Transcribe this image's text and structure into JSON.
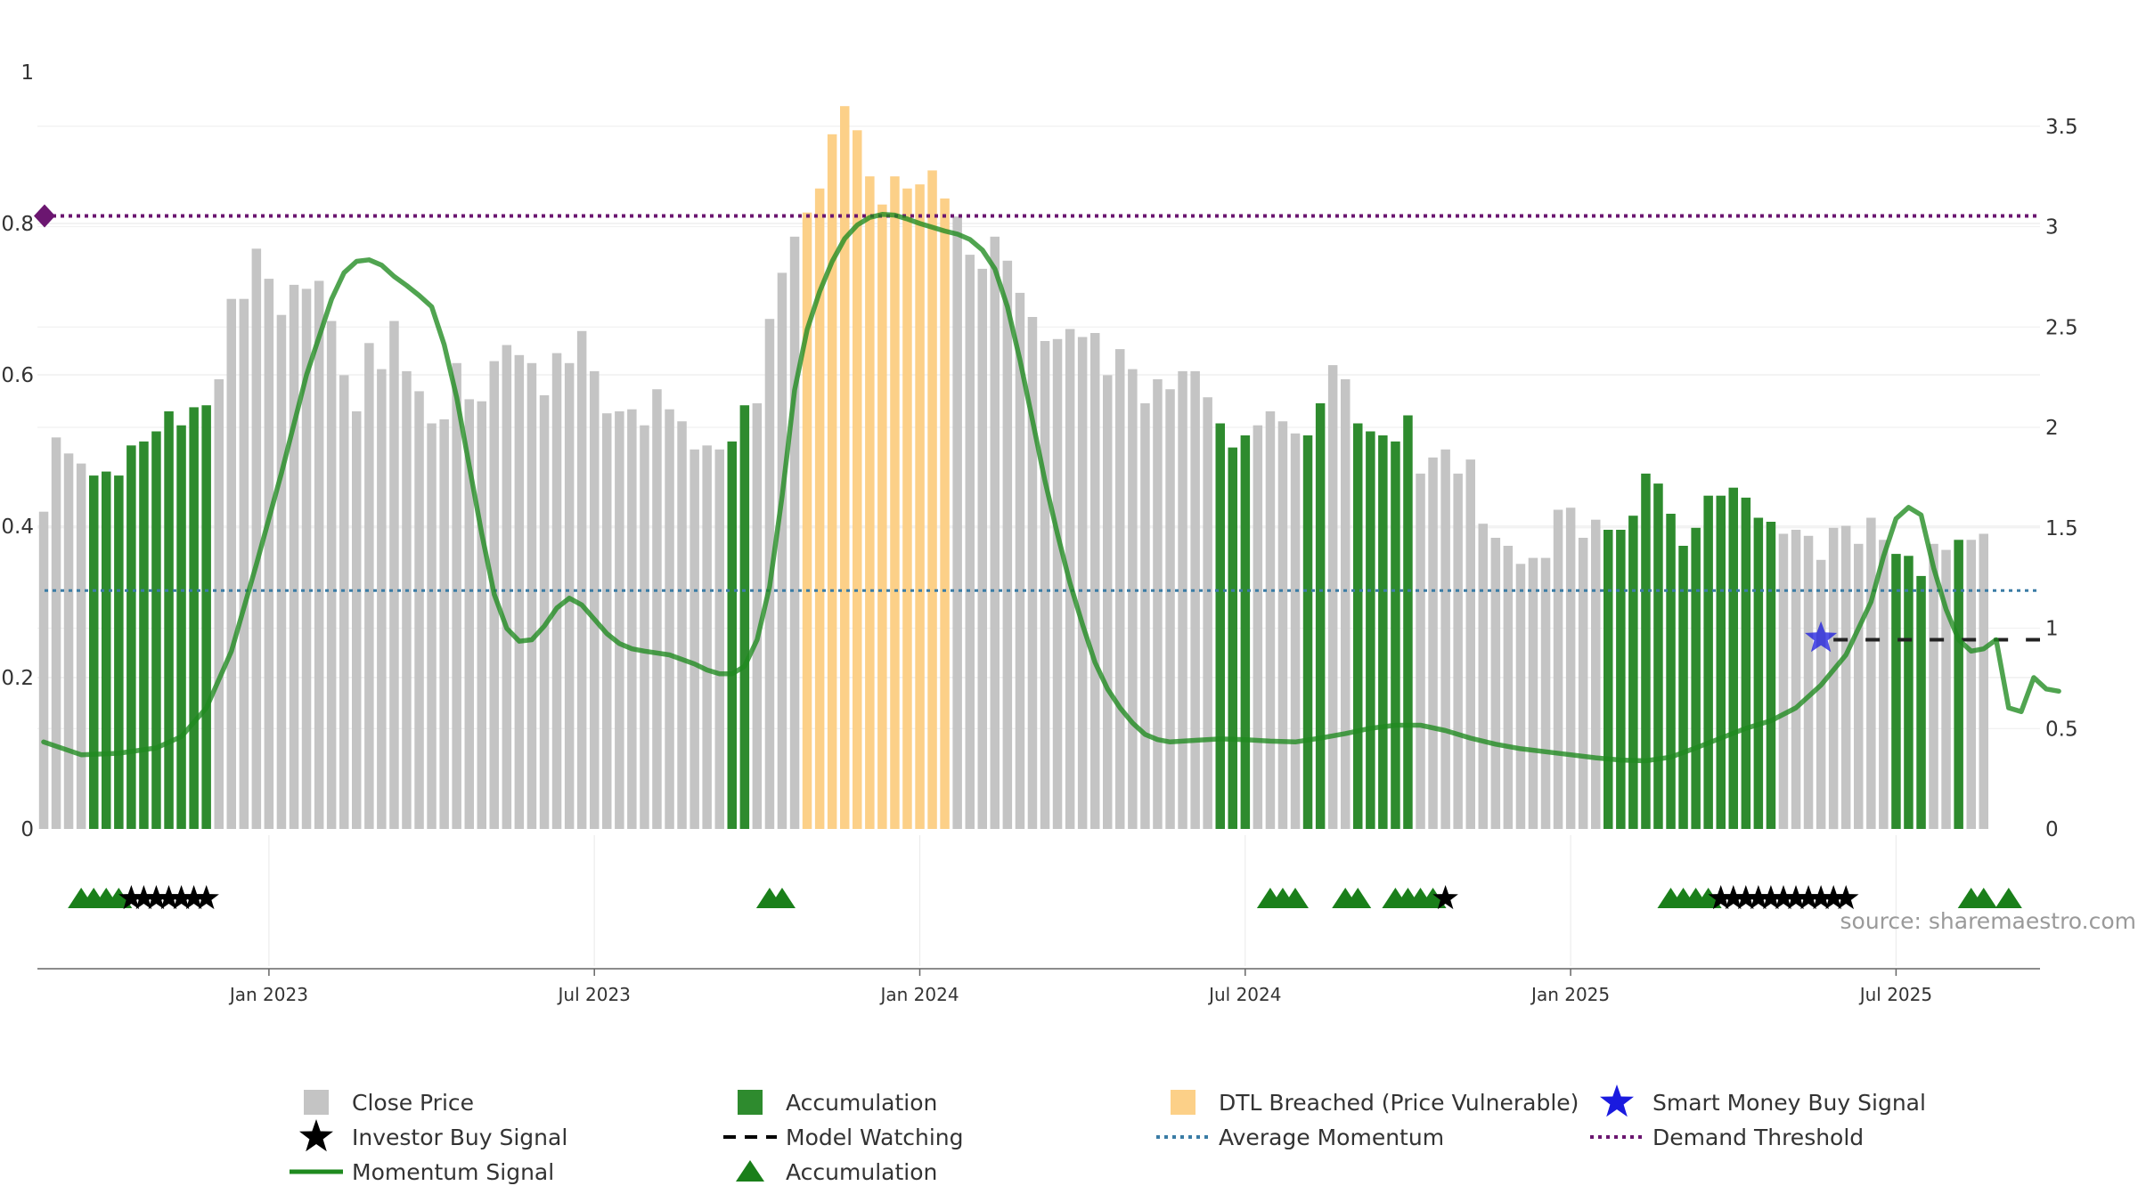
{
  "source_text": "source: sharemaestro.com",
  "colors": {
    "close": "#c4c4c4",
    "accumulation": "#2e8b2e",
    "dtl": "#fcd088",
    "momentum": "#1f8a1f",
    "average": "#3a7ca5",
    "threshold": "#6b1670",
    "smart_money": "#1a1adf",
    "triangle": "#1a7f1a",
    "star": "#000000"
  },
  "chart_data": {
    "type": "bar",
    "left_axis": {
      "range": [
        0,
        1
      ],
      "ticks": [
        "0",
        "0.2",
        "0.4",
        "0.6",
        "0.8",
        "1"
      ]
    },
    "right_axis": {
      "range": [
        0,
        3.75
      ],
      "ticks": [
        "0",
        "0.5",
        "1",
        "1.5",
        "2",
        "2.5",
        "3",
        "3.5"
      ]
    },
    "x_ticks": [
      "Jan 2023",
      "Jul 2023",
      "Jan 2024",
      "Jul 2024",
      "Jan 2025",
      "Jul 2025"
    ],
    "x_tick_weeks": [
      18,
      44,
      70,
      96,
      122,
      148
    ],
    "bars": [
      [
        1.58,
        "close"
      ],
      [
        1.95,
        "close"
      ],
      [
        1.87,
        "close"
      ],
      [
        1.82,
        "close"
      ],
      [
        1.76,
        "acc"
      ],
      [
        1.78,
        "acc"
      ],
      [
        1.76,
        "acc"
      ],
      [
        1.91,
        "acc"
      ],
      [
        1.93,
        "acc"
      ],
      [
        1.98,
        "acc"
      ],
      [
        2.08,
        "acc"
      ],
      [
        2.01,
        "acc"
      ],
      [
        2.1,
        "acc"
      ],
      [
        2.11,
        "acc"
      ],
      [
        2.24,
        "close"
      ],
      [
        2.64,
        "close"
      ],
      [
        2.64,
        "close"
      ],
      [
        2.89,
        "close"
      ],
      [
        2.74,
        "close"
      ],
      [
        2.56,
        "close"
      ],
      [
        2.71,
        "close"
      ],
      [
        2.69,
        "close"
      ],
      [
        2.73,
        "close"
      ],
      [
        2.53,
        "close"
      ],
      [
        2.26,
        "close"
      ],
      [
        2.08,
        "close"
      ],
      [
        2.42,
        "close"
      ],
      [
        2.29,
        "close"
      ],
      [
        2.53,
        "close"
      ],
      [
        2.28,
        "close"
      ],
      [
        2.18,
        "close"
      ],
      [
        2.02,
        "close"
      ],
      [
        2.04,
        "close"
      ],
      [
        2.32,
        "close"
      ],
      [
        2.14,
        "close"
      ],
      [
        2.13,
        "close"
      ],
      [
        2.33,
        "close"
      ],
      [
        2.41,
        "close"
      ],
      [
        2.36,
        "close"
      ],
      [
        2.32,
        "close"
      ],
      [
        2.16,
        "close"
      ],
      [
        2.37,
        "close"
      ],
      [
        2.32,
        "close"
      ],
      [
        2.48,
        "close"
      ],
      [
        2.28,
        "close"
      ],
      [
        2.07,
        "close"
      ],
      [
        2.08,
        "close"
      ],
      [
        2.09,
        "close"
      ],
      [
        2.01,
        "close"
      ],
      [
        2.19,
        "close"
      ],
      [
        2.09,
        "close"
      ],
      [
        2.03,
        "close"
      ],
      [
        1.89,
        "close"
      ],
      [
        1.91,
        "close"
      ],
      [
        1.89,
        "close"
      ],
      [
        1.93,
        "acc"
      ],
      [
        2.11,
        "acc"
      ],
      [
        2.12,
        "close"
      ],
      [
        2.54,
        "close"
      ],
      [
        2.77,
        "close"
      ],
      [
        2.95,
        "close"
      ],
      [
        3.07,
        "dtl"
      ],
      [
        3.19,
        "dtl"
      ],
      [
        3.46,
        "dtl"
      ],
      [
        3.6,
        "dtl"
      ],
      [
        3.48,
        "dtl"
      ],
      [
        3.25,
        "dtl"
      ],
      [
        3.11,
        "dtl"
      ],
      [
        3.25,
        "dtl"
      ],
      [
        3.19,
        "dtl"
      ],
      [
        3.21,
        "dtl"
      ],
      [
        3.28,
        "dtl"
      ],
      [
        3.14,
        "dtl"
      ],
      [
        3.05,
        "close"
      ],
      [
        2.86,
        "close"
      ],
      [
        2.79,
        "close"
      ],
      [
        2.95,
        "close"
      ],
      [
        2.83,
        "close"
      ],
      [
        2.67,
        "close"
      ],
      [
        2.55,
        "close"
      ],
      [
        2.43,
        "close"
      ],
      [
        2.44,
        "close"
      ],
      [
        2.49,
        "close"
      ],
      [
        2.45,
        "close"
      ],
      [
        2.47,
        "close"
      ],
      [
        2.26,
        "close"
      ],
      [
        2.39,
        "close"
      ],
      [
        2.29,
        "close"
      ],
      [
        2.12,
        "close"
      ],
      [
        2.24,
        "close"
      ],
      [
        2.19,
        "close"
      ],
      [
        2.28,
        "close"
      ],
      [
        2.28,
        "close"
      ],
      [
        2.15,
        "close"
      ],
      [
        2.02,
        "acc"
      ],
      [
        1.9,
        "acc"
      ],
      [
        1.96,
        "acc"
      ],
      [
        2.01,
        "close"
      ],
      [
        2.08,
        "close"
      ],
      [
        2.03,
        "close"
      ],
      [
        1.97,
        "close"
      ],
      [
        1.96,
        "acc"
      ],
      [
        2.12,
        "acc"
      ],
      [
        2.31,
        "close"
      ],
      [
        2.24,
        "close"
      ],
      [
        2.02,
        "acc"
      ],
      [
        1.98,
        "acc"
      ],
      [
        1.96,
        "acc"
      ],
      [
        1.93,
        "acc"
      ],
      [
        2.06,
        "acc"
      ],
      [
        1.77,
        "close"
      ],
      [
        1.85,
        "close"
      ],
      [
        1.89,
        "close"
      ],
      [
        1.77,
        "close"
      ],
      [
        1.84,
        "close"
      ],
      [
        1.52,
        "close"
      ],
      [
        1.45,
        "close"
      ],
      [
        1.41,
        "close"
      ],
      [
        1.32,
        "close"
      ],
      [
        1.35,
        "close"
      ],
      [
        1.35,
        "close"
      ],
      [
        1.59,
        "close"
      ],
      [
        1.6,
        "close"
      ],
      [
        1.45,
        "close"
      ],
      [
        1.54,
        "close"
      ],
      [
        1.49,
        "acc"
      ],
      [
        1.49,
        "acc"
      ],
      [
        1.56,
        "acc"
      ],
      [
        1.77,
        "acc"
      ],
      [
        1.72,
        "acc"
      ],
      [
        1.57,
        "acc"
      ],
      [
        1.41,
        "acc"
      ],
      [
        1.5,
        "acc"
      ],
      [
        1.66,
        "acc"
      ],
      [
        1.66,
        "acc"
      ],
      [
        1.7,
        "acc"
      ],
      [
        1.65,
        "acc"
      ],
      [
        1.55,
        "acc"
      ],
      [
        1.53,
        "acc"
      ],
      [
        1.47,
        "close"
      ],
      [
        1.49,
        "close"
      ],
      [
        1.46,
        "close"
      ],
      [
        1.34,
        "close"
      ],
      [
        1.5,
        "close"
      ],
      [
        1.51,
        "close"
      ],
      [
        1.42,
        "close"
      ],
      [
        1.55,
        "close"
      ],
      [
        1.44,
        "close"
      ],
      [
        1.37,
        "acc"
      ],
      [
        1.36,
        "acc"
      ],
      [
        1.26,
        "acc"
      ],
      [
        1.42,
        "close"
      ],
      [
        1.39,
        "close"
      ],
      [
        1.44,
        "acc"
      ],
      [
        1.44,
        "close"
      ],
      [
        1.47,
        "close"
      ]
    ],
    "momentum_signal": [
      [
        0,
        0.115
      ],
      [
        3,
        0.098
      ],
      [
        6,
        0.1
      ],
      [
        9,
        0.107
      ],
      [
        11,
        0.122
      ],
      [
        13,
        0.16
      ],
      [
        15,
        0.235
      ],
      [
        17,
        0.35
      ],
      [
        19,
        0.47
      ],
      [
        21,
        0.6
      ],
      [
        23,
        0.7
      ],
      [
        24,
        0.735
      ],
      [
        25,
        0.75
      ],
      [
        26,
        0.752
      ],
      [
        27,
        0.745
      ],
      [
        28,
        0.73
      ],
      [
        29,
        0.718
      ],
      [
        30,
        0.705
      ],
      [
        31,
        0.69
      ],
      [
        32,
        0.64
      ],
      [
        33,
        0.57
      ],
      [
        34,
        0.48
      ],
      [
        35,
        0.39
      ],
      [
        36,
        0.31
      ],
      [
        37,
        0.265
      ],
      [
        38,
        0.248
      ],
      [
        39,
        0.25
      ],
      [
        40,
        0.268
      ],
      [
        41,
        0.292
      ],
      [
        42,
        0.305
      ],
      [
        43,
        0.296
      ],
      [
        44,
        0.277
      ],
      [
        45,
        0.258
      ],
      [
        46,
        0.245
      ],
      [
        47,
        0.238
      ],
      [
        48,
        0.235
      ],
      [
        50,
        0.23
      ],
      [
        52,
        0.218
      ],
      [
        53,
        0.21
      ],
      [
        54,
        0.205
      ],
      [
        55,
        0.205
      ],
      [
        56,
        0.215
      ],
      [
        57,
        0.25
      ],
      [
        58,
        0.32
      ],
      [
        59,
        0.44
      ],
      [
        60,
        0.58
      ],
      [
        61,
        0.66
      ],
      [
        62,
        0.71
      ],
      [
        63,
        0.75
      ],
      [
        64,
        0.78
      ],
      [
        65,
        0.798
      ],
      [
        66,
        0.808
      ],
      [
        67,
        0.812
      ],
      [
        68,
        0.811
      ],
      [
        69,
        0.806
      ],
      [
        70,
        0.8
      ],
      [
        71,
        0.795
      ],
      [
        72,
        0.79
      ],
      [
        73,
        0.786
      ],
      [
        74,
        0.779
      ],
      [
        75,
        0.765
      ],
      [
        76,
        0.74
      ],
      [
        77,
        0.69
      ],
      [
        78,
        0.62
      ],
      [
        79,
        0.54
      ],
      [
        80,
        0.46
      ],
      [
        81,
        0.39
      ],
      [
        82,
        0.325
      ],
      [
        83,
        0.27
      ],
      [
        84,
        0.22
      ],
      [
        85,
        0.185
      ],
      [
        86,
        0.16
      ],
      [
        87,
        0.14
      ],
      [
        88,
        0.125
      ],
      [
        89,
        0.118
      ],
      [
        90,
        0.115
      ],
      [
        92,
        0.117
      ],
      [
        94,
        0.119
      ],
      [
        96,
        0.118
      ],
      [
        98,
        0.116
      ],
      [
        100,
        0.115
      ],
      [
        102,
        0.12
      ],
      [
        104,
        0.126
      ],
      [
        106,
        0.133
      ],
      [
        108,
        0.137
      ],
      [
        110,
        0.137
      ],
      [
        112,
        0.13
      ],
      [
        114,
        0.12
      ],
      [
        116,
        0.112
      ],
      [
        118,
        0.106
      ],
      [
        120,
        0.102
      ],
      [
        122,
        0.098
      ],
      [
        124,
        0.094
      ],
      [
        126,
        0.091
      ],
      [
        128,
        0.09
      ],
      [
        130,
        0.095
      ],
      [
        132,
        0.107
      ],
      [
        134,
        0.12
      ],
      [
        136,
        0.133
      ],
      [
        138,
        0.143
      ],
      [
        140,
        0.16
      ],
      [
        142,
        0.19
      ],
      [
        144,
        0.23
      ],
      [
        146,
        0.3
      ],
      [
        147,
        0.36
      ],
      [
        148,
        0.41
      ],
      [
        149,
        0.425
      ],
      [
        150,
        0.415
      ],
      [
        151,
        0.345
      ],
      [
        152,
        0.29
      ],
      [
        153,
        0.25
      ],
      [
        154,
        0.235
      ],
      [
        155,
        0.238
      ],
      [
        156,
        0.25
      ],
      [
        157,
        0.16
      ],
      [
        158,
        0.155
      ],
      [
        159,
        0.2
      ],
      [
        160,
        0.185
      ],
      [
        161,
        0.182
      ]
    ],
    "average_momentum": 0.315,
    "demand_threshold": 0.81,
    "model_watching_level": 0.25,
    "model_watching_from_week": 143,
    "smart_money_signals": [
      [
        142,
        0.252
      ]
    ],
    "accumulation_triangles": [
      3,
      4,
      5,
      6,
      58,
      59,
      98,
      99,
      100,
      104,
      105,
      108,
      109,
      110,
      111,
      130,
      131,
      132,
      133,
      154,
      155,
      157
    ],
    "investor_buy_stars": [
      7,
      8,
      9,
      10,
      11,
      12,
      13,
      112,
      134,
      135,
      136,
      137,
      138,
      139,
      140,
      141,
      142,
      143,
      144
    ],
    "legend": [
      {
        "label": "Close Price",
        "symbol": "square",
        "color": "#c4c4c4"
      },
      {
        "label": "Investor Buy Signal",
        "symbol": "star",
        "color": "#000000"
      },
      {
        "label": "Momentum Signal",
        "symbol": "line",
        "color": "#1f8a1f"
      },
      {
        "label": "Accumulation",
        "symbol": "square",
        "color": "#2e8b2e"
      },
      {
        "label": "Model Watching",
        "symbol": "dash",
        "color": "#000000"
      },
      {
        "label": "Accumulation",
        "symbol": "triangle",
        "color": "#1a7f1a"
      },
      {
        "label": "DTL Breached (Price Vulnerable)",
        "symbol": "square",
        "color": "#fcd088"
      },
      {
        "label": "Average Momentum",
        "symbol": "dotted",
        "color": "#3a7ca5"
      },
      {
        "label": "Smart Money Buy Signal",
        "symbol": "star",
        "color": "#1a1adf"
      },
      {
        "label": "Demand Threshold",
        "symbol": "dotted",
        "color": "#6b1670"
      }
    ]
  }
}
